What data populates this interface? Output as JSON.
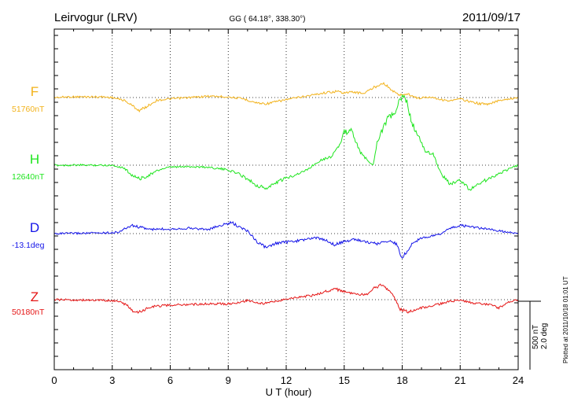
{
  "chart_data": {
    "type": "line",
    "title": "Leirvogur (LRV)",
    "subtitle": "GG ( 64.18°, 338.30°)",
    "date": "2011/09/17",
    "xlabel": "U T (hour)",
    "xlim": [
      0,
      24
    ],
    "xticks": [
      0,
      3,
      6,
      9,
      12,
      15,
      18,
      21,
      24
    ],
    "vertical_gridlines": [
      3,
      6,
      9,
      12,
      15,
      18,
      21
    ],
    "baseline_grid": "dotted",
    "scale_bar": {
      "lines": [
        "500 nT",
        "2.0 deg"
      ]
    },
    "footer_note": "Plotted at 2011/10/18 01:01 UT",
    "series": [
      {
        "name": "F",
        "baseline_label": "51760nT",
        "color": "#f2b21a",
        "points": [
          [
            0,
            0
          ],
          [
            0.8,
            5
          ],
          [
            2.5,
            5
          ],
          [
            3.0,
            0
          ],
          [
            3.6,
            -20
          ],
          [
            4.0,
            -55
          ],
          [
            4.4,
            -95
          ],
          [
            4.8,
            -65
          ],
          [
            5.3,
            -20
          ],
          [
            6.0,
            -10
          ],
          [
            7.0,
            0
          ],
          [
            8.0,
            10
          ],
          [
            9.0,
            5
          ],
          [
            9.8,
            -10
          ],
          [
            10.5,
            -40
          ],
          [
            11.0,
            -45
          ],
          [
            11.5,
            -30
          ],
          [
            12.0,
            -15
          ],
          [
            13.0,
            10
          ],
          [
            14.0,
            35
          ],
          [
            14.6,
            45
          ],
          [
            15.0,
            35
          ],
          [
            15.5,
            40
          ],
          [
            16.0,
            30
          ],
          [
            16.5,
            70
          ],
          [
            17.0,
            110
          ],
          [
            17.4,
            60
          ],
          [
            17.8,
            20
          ],
          [
            18.3,
            25
          ],
          [
            18.8,
            -5
          ],
          [
            19.5,
            5
          ],
          [
            20.0,
            -15
          ],
          [
            20.5,
            -25
          ],
          [
            21.0,
            -10
          ],
          [
            21.5,
            -30
          ],
          [
            22.0,
            -45
          ],
          [
            22.5,
            -50
          ],
          [
            23.0,
            -20
          ],
          [
            23.5,
            -10
          ],
          [
            24,
            0
          ]
        ]
      },
      {
        "name": "H",
        "baseline_label": "12640nT",
        "color": "#1ee51e",
        "points": [
          [
            0,
            0
          ],
          [
            3.0,
            0
          ],
          [
            3.6,
            -20
          ],
          [
            4.0,
            -70
          ],
          [
            4.4,
            -100
          ],
          [
            4.8,
            -80
          ],
          [
            5.5,
            -30
          ],
          [
            6.0,
            -15
          ],
          [
            7.0,
            -10
          ],
          [
            8.0,
            -15
          ],
          [
            9.0,
            -35
          ],
          [
            9.5,
            -60
          ],
          [
            10.0,
            -100
          ],
          [
            10.5,
            -150
          ],
          [
            11.0,
            -170
          ],
          [
            11.5,
            -125
          ],
          [
            12.0,
            -95
          ],
          [
            13.0,
            -40
          ],
          [
            13.8,
            40
          ],
          [
            14.3,
            60
          ],
          [
            14.8,
            155
          ],
          [
            15.0,
            240
          ],
          [
            15.4,
            250
          ],
          [
            15.8,
            100
          ],
          [
            16.3,
            20
          ],
          [
            16.5,
            5
          ],
          [
            16.7,
            170
          ],
          [
            17.2,
            330
          ],
          [
            17.6,
            380
          ],
          [
            18.0,
            500
          ],
          [
            18.2,
            480
          ],
          [
            18.5,
            310
          ],
          [
            18.8,
            220
          ],
          [
            19.2,
            100
          ],
          [
            19.6,
            80
          ],
          [
            20.0,
            -60
          ],
          [
            20.5,
            -140
          ],
          [
            21.0,
            -110
          ],
          [
            21.5,
            -180
          ],
          [
            22.0,
            -130
          ],
          [
            22.5,
            -100
          ],
          [
            23.0,
            -60
          ],
          [
            23.5,
            -30
          ],
          [
            24,
            0
          ]
        ]
      },
      {
        "name": "D",
        "baseline_label": "-13.1deg",
        "color": "#1414e8",
        "points": [
          [
            0,
            0
          ],
          [
            2.5,
            5
          ],
          [
            3.3,
            10
          ],
          [
            4.0,
            60
          ],
          [
            5.0,
            30
          ],
          [
            6.0,
            35
          ],
          [
            7.0,
            40
          ],
          [
            8.0,
            30
          ],
          [
            8.6,
            60
          ],
          [
            9.2,
            80
          ],
          [
            9.6,
            45
          ],
          [
            10.0,
            20
          ],
          [
            10.5,
            -60
          ],
          [
            11.0,
            -105
          ],
          [
            11.5,
            -70
          ],
          [
            12.5,
            -55
          ],
          [
            13.5,
            -30
          ],
          [
            14.0,
            -45
          ],
          [
            14.5,
            -80
          ],
          [
            15.0,
            -60
          ],
          [
            15.5,
            -40
          ],
          [
            16.3,
            -65
          ],
          [
            16.7,
            -75
          ],
          [
            17.3,
            -50
          ],
          [
            17.7,
            -75
          ],
          [
            18.0,
            -180
          ],
          [
            18.3,
            -120
          ],
          [
            18.5,
            -75
          ],
          [
            19.0,
            -30
          ],
          [
            19.5,
            -20
          ],
          [
            20.0,
            0
          ],
          [
            20.5,
            40
          ],
          [
            21.0,
            60
          ],
          [
            21.5,
            50
          ],
          [
            22.0,
            40
          ],
          [
            22.5,
            30
          ],
          [
            23.0,
            20
          ],
          [
            24,
            0
          ]
        ]
      },
      {
        "name": "Z",
        "baseline_label": "50180nT",
        "color": "#e51414",
        "points": [
          [
            0,
            0
          ],
          [
            2.5,
            -5
          ],
          [
            3.3,
            -10
          ],
          [
            3.8,
            -45
          ],
          [
            4.2,
            -100
          ],
          [
            4.6,
            -80
          ],
          [
            5.0,
            -50
          ],
          [
            6.0,
            -40
          ],
          [
            7.0,
            -35
          ],
          [
            8.0,
            -30
          ],
          [
            9.0,
            -30
          ],
          [
            9.5,
            -25
          ],
          [
            10.0,
            -5
          ],
          [
            10.8,
            -30
          ],
          [
            11.5,
            -10
          ],
          [
            12.5,
            15
          ],
          [
            13.5,
            35
          ],
          [
            14.5,
            80
          ],
          [
            15.0,
            60
          ],
          [
            15.5,
            40
          ],
          [
            16.2,
            35
          ],
          [
            16.6,
            90
          ],
          [
            17.0,
            110
          ],
          [
            17.5,
            40
          ],
          [
            17.9,
            -70
          ],
          [
            18.3,
            -90
          ],
          [
            18.8,
            -65
          ],
          [
            19.5,
            -45
          ],
          [
            20.0,
            -30
          ],
          [
            20.5,
            -10
          ],
          [
            21.0,
            -5
          ],
          [
            21.5,
            -20
          ],
          [
            22.0,
            -30
          ],
          [
            22.5,
            -35
          ],
          [
            23.0,
            -60
          ],
          [
            23.5,
            -20
          ],
          [
            24,
            0
          ]
        ]
      }
    ]
  }
}
